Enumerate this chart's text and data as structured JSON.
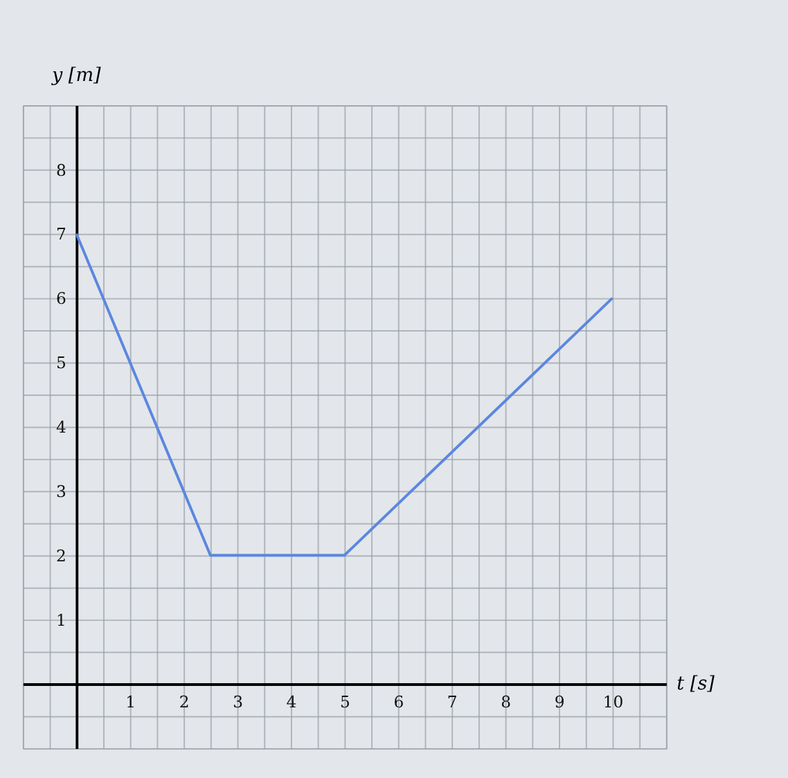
{
  "chart_data": {
    "type": "line",
    "xlabel": "t [s]",
    "ylabel": "y [m]",
    "x": [
      0,
      2.5,
      5,
      10
    ],
    "series": [
      {
        "color": "#5b87e0",
        "values": [
          7,
          2,
          2,
          6
        ]
      }
    ],
    "xlim": [
      -1,
      11
    ],
    "ylim": [
      -1,
      9
    ],
    "xticks": [
      1,
      2,
      3,
      4,
      5,
      6,
      7,
      8,
      9,
      10
    ],
    "yticks": [
      1,
      2,
      3,
      4,
      5,
      6,
      7,
      8
    ],
    "grid": true,
    "marker": "none",
    "line_style": "solid"
  }
}
